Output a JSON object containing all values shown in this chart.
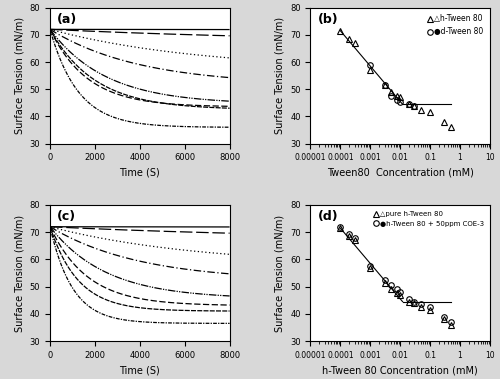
{
  "panel_a_label": "(a)",
  "panel_b_label": "(b)",
  "panel_c_label": "(c)",
  "panel_d_label": "(d)",
  "ylabel": "Surface Tension (mN/m)",
  "xlabel_ac": "Time (S)",
  "xlabel_b": "Tween80  Concentration (mM)",
  "xlabel_d": "h-Tween 80 Concentration (mM)",
  "ylim": [
    30,
    80
  ],
  "xlim_ac": [
    0,
    8000
  ],
  "xlim_bd": [
    1e-05,
    10
  ],
  "yticks": [
    30,
    40,
    50,
    60,
    70,
    80
  ],
  "xticks_ac": [
    0,
    2000,
    4000,
    6000,
    8000
  ],
  "xticks_bd_vals": [
    1e-05,
    0.0001,
    0.001,
    0.01,
    0.1,
    1,
    10
  ],
  "xticks_bd_labels": [
    "0.00001",
    "0.0001",
    "0.001",
    "0.01",
    "0.1",
    "1",
    "10"
  ],
  "legend_b": [
    "△h-Tween 80",
    "●d-Tween 80"
  ],
  "legend_d": [
    "△pure h-Tween 80",
    "●h-Tween 80 + 50ppm COE-3"
  ],
  "curve_start_values_a": [
    72.0,
    72.0,
    72.0,
    72.0,
    72.0,
    72.0,
    72.0,
    72.0
  ],
  "curve_end_values_a": [
    71.5,
    67.0,
    57.0,
    51.5,
    44.5,
    43.5,
    42.5,
    36.0
  ],
  "curve_decays_a": [
    2e-05,
    8e-05,
    0.00015,
    0.00025,
    0.0004,
    0.0006,
    0.0005,
    0.0008
  ],
  "curve_start_values_c": [
    72.0,
    72.0,
    72.0,
    72.0,
    72.0,
    72.0,
    72.0,
    72.0
  ],
  "curve_end_values_c": [
    71.5,
    67.0,
    57.5,
    52.0,
    45.5,
    43.0,
    41.0,
    36.5
  ],
  "curve_decays_c": [
    2e-05,
    8e-05,
    0.00015,
    0.00025,
    0.0004,
    0.0006,
    0.0008,
    0.001
  ],
  "h_conc_b": [
    0.0001,
    0.0002,
    0.0003,
    0.001,
    0.003,
    0.005,
    0.008,
    0.01,
    0.02,
    0.03,
    0.05,
    0.1,
    0.3,
    0.5
  ],
  "h_st_b": [
    71.5,
    68.5,
    67.0,
    57.0,
    51.5,
    49.0,
    47.5,
    47.0,
    44.5,
    44.0,
    42.5,
    41.5,
    38.0,
    36.0
  ],
  "d_conc_b": [
    0.001,
    0.003,
    0.005,
    0.008,
    0.01,
    0.02,
    0.03
  ],
  "d_st_b": [
    59.0,
    51.5,
    47.5,
    46.0,
    45.5,
    44.5,
    44.0
  ],
  "h_conc_d": [
    0.0001,
    0.0002,
    0.0003,
    0.001,
    0.003,
    0.005,
    0.008,
    0.01,
    0.02,
    0.03,
    0.05,
    0.1,
    0.3,
    0.5
  ],
  "h_st_d": [
    71.5,
    68.5,
    67.0,
    57.0,
    51.5,
    49.0,
    47.5,
    47.0,
    44.5,
    44.0,
    42.5,
    41.5,
    38.0,
    36.0
  ],
  "coe_conc_d": [
    0.0001,
    0.0002,
    0.0003,
    0.001,
    0.003,
    0.005,
    0.008,
    0.01,
    0.02,
    0.03,
    0.05,
    0.1,
    0.3,
    0.5
  ],
  "coe_st_d": [
    72.0,
    69.5,
    68.0,
    57.5,
    52.5,
    50.5,
    49.0,
    48.0,
    45.5,
    44.5,
    43.5,
    42.5,
    39.0,
    37.0
  ],
  "cmc_line_b_x1": 0.0001,
  "cmc_line_b_y1": 71.5,
  "cmc_line_b_x2": 0.012,
  "cmc_line_b_y2": 44.5,
  "cmc_line_b_x3": 0.5,
  "cmc_line_b_y3": 44.5,
  "cmc_line_d_x1": 0.0001,
  "cmc_line_d_y1": 71.5,
  "cmc_line_d_x2": 0.012,
  "cmc_line_d_y2": 44.5,
  "cmc_line_d_x3": 0.5,
  "cmc_line_d_y3": 44.5,
  "bg_color": "#d8d8d8",
  "axis_bg": "#ffffff"
}
